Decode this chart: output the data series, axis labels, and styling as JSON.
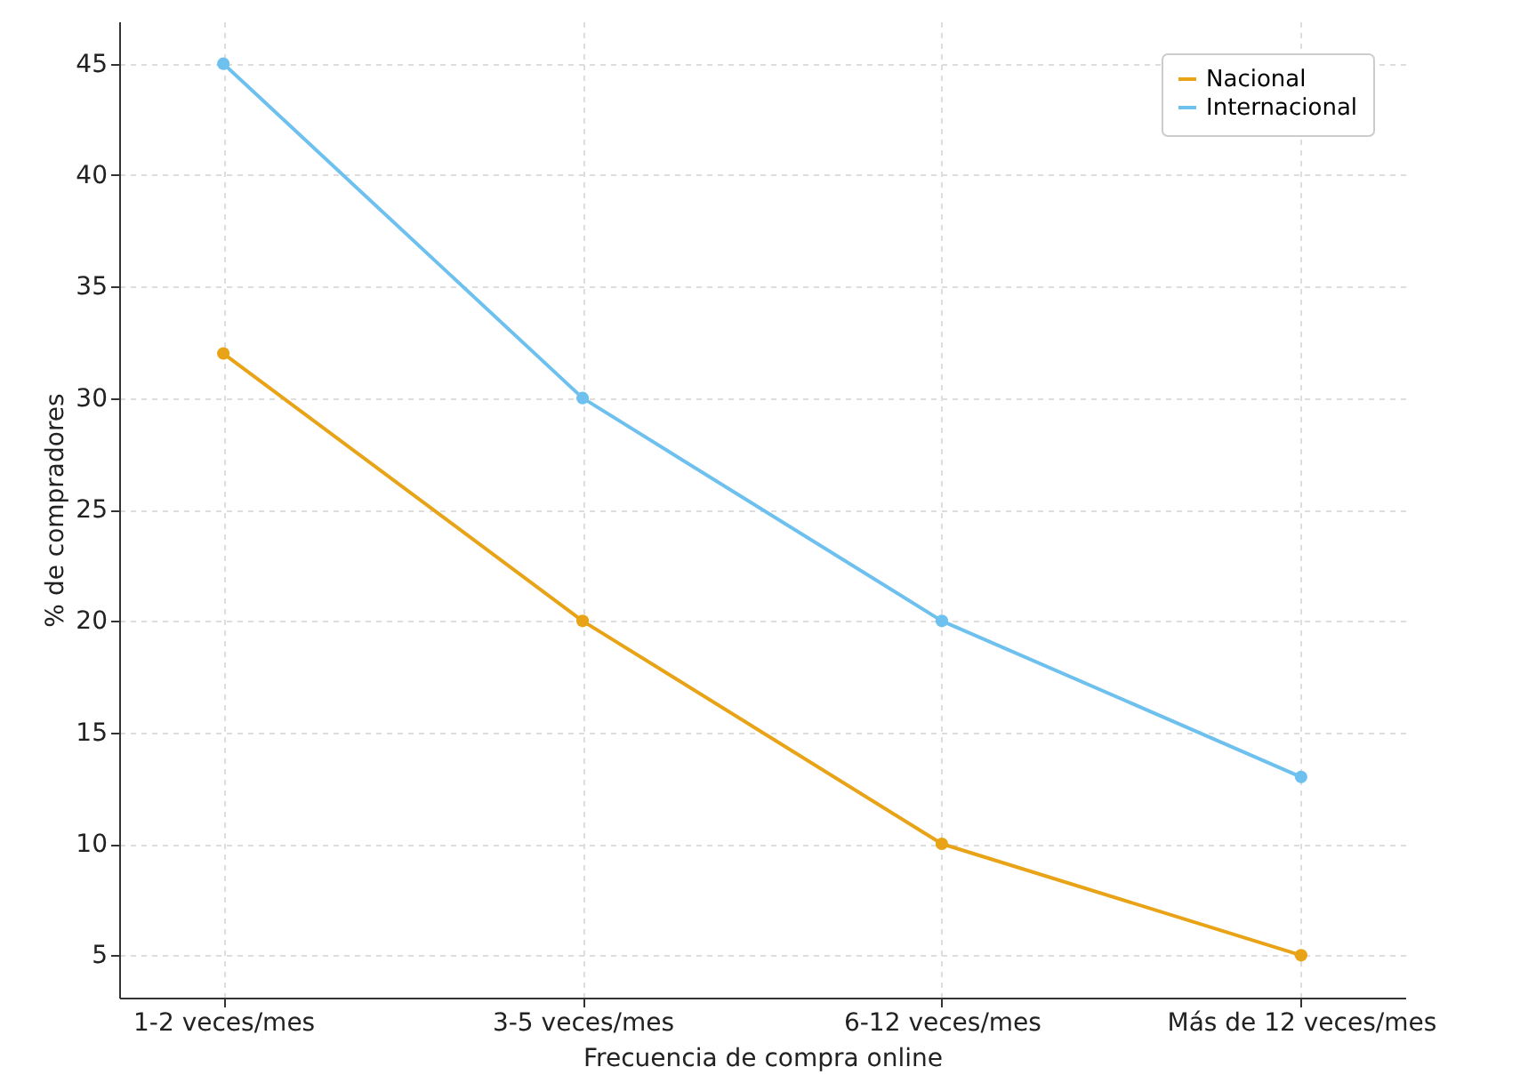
{
  "chart_data": {
    "type": "line",
    "xlabel": "Frecuencia de compra online",
    "ylabel": "% de compradores",
    "categories": [
      "1-2 veces/mes",
      "3-5 veces/mes",
      "6-12 veces/mes",
      "Más de 12 veces/mes"
    ],
    "series": [
      {
        "name": "Nacional",
        "color": "#e8a317",
        "values": [
          32,
          20,
          10,
          5
        ]
      },
      {
        "name": "Internacional",
        "color": "#6ec1ee",
        "values": [
          45,
          30,
          20,
          13
        ]
      }
    ],
    "ylim": [
      3.1,
      46.9
    ],
    "yticks": [
      5,
      10,
      15,
      20,
      25,
      30,
      35,
      40,
      45
    ],
    "grid": true,
    "legend": "top right",
    "marker": "circle",
    "line_style": "solid"
  }
}
